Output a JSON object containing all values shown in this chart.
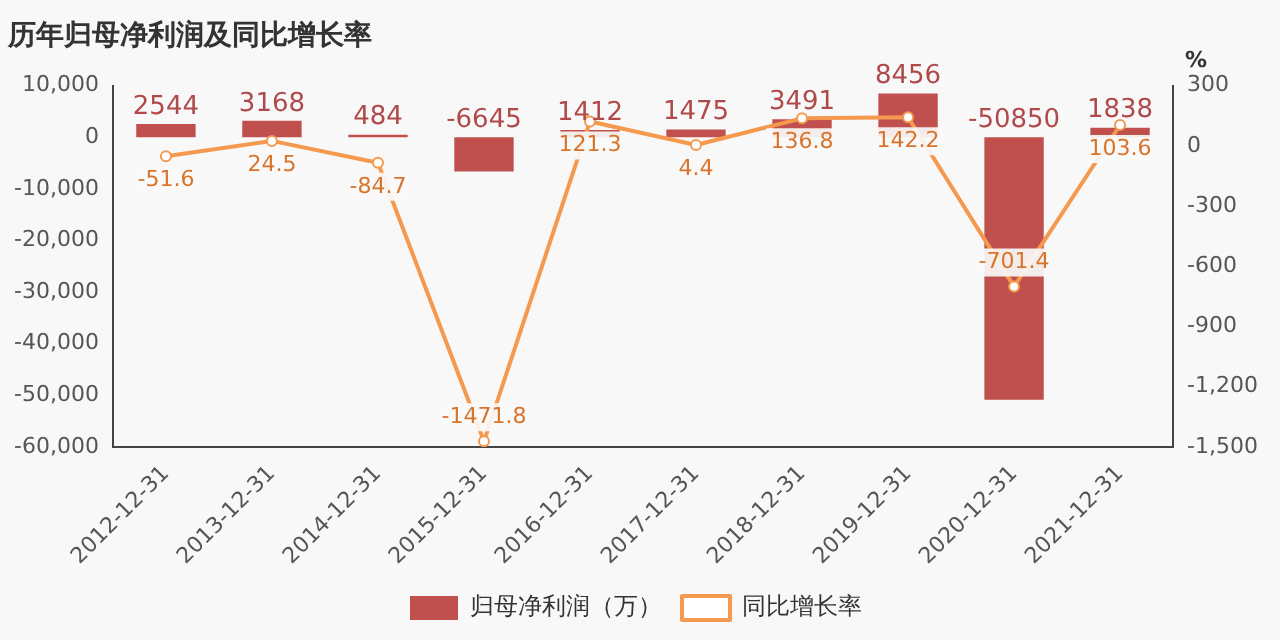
{
  "chart_data": {
    "type": "bar",
    "title": "历年归母净利润及同比增长率",
    "y2label": "%",
    "categories": [
      "2012-12-31",
      "2013-12-31",
      "2014-12-31",
      "2015-12-31",
      "2016-12-31",
      "2017-12-31",
      "2018-12-31",
      "2019-12-31",
      "2020-12-31",
      "2021-12-31"
    ],
    "series": [
      {
        "name": "归母净利润（万）",
        "color": "#c0504d",
        "values": [
          2544,
          3168,
          484,
          -6645,
          1412,
          1475,
          3491,
          8456,
          -50850,
          1838
        ]
      },
      {
        "name": "同比增长率",
        "type": "line",
        "axis": "y2",
        "color": "#f5994e",
        "marker": "circle",
        "values": [
          -51.6,
          24.5,
          -84.7,
          -1471.8,
          121.3,
          4.4,
          136.8,
          142.2,
          -701.4,
          103.6
        ]
      }
    ],
    "ylim": [
      -60000,
      10000
    ],
    "yticks": [
      {
        "value": -60000,
        "label": "-60,000"
      },
      {
        "value": -50000,
        "label": "-50,000"
      },
      {
        "value": -40000,
        "label": "-40,000"
      },
      {
        "value": -30000,
        "label": "-30,000"
      },
      {
        "value": -20000,
        "label": "-20,000"
      },
      {
        "value": -10000,
        "label": "-10,000"
      },
      0,
      {
        "value": 10000,
        "label": "10,000"
      }
    ],
    "y2lim": [
      -1500,
      300
    ],
    "y2ticks": [
      {
        "value": -1500,
        "label": "-1,500"
      },
      {
        "value": -1200,
        "label": "-1,200"
      },
      -900,
      -600,
      -300,
      0,
      300
    ],
    "data_labels": true,
    "grid": false,
    "legend": "bottom"
  }
}
